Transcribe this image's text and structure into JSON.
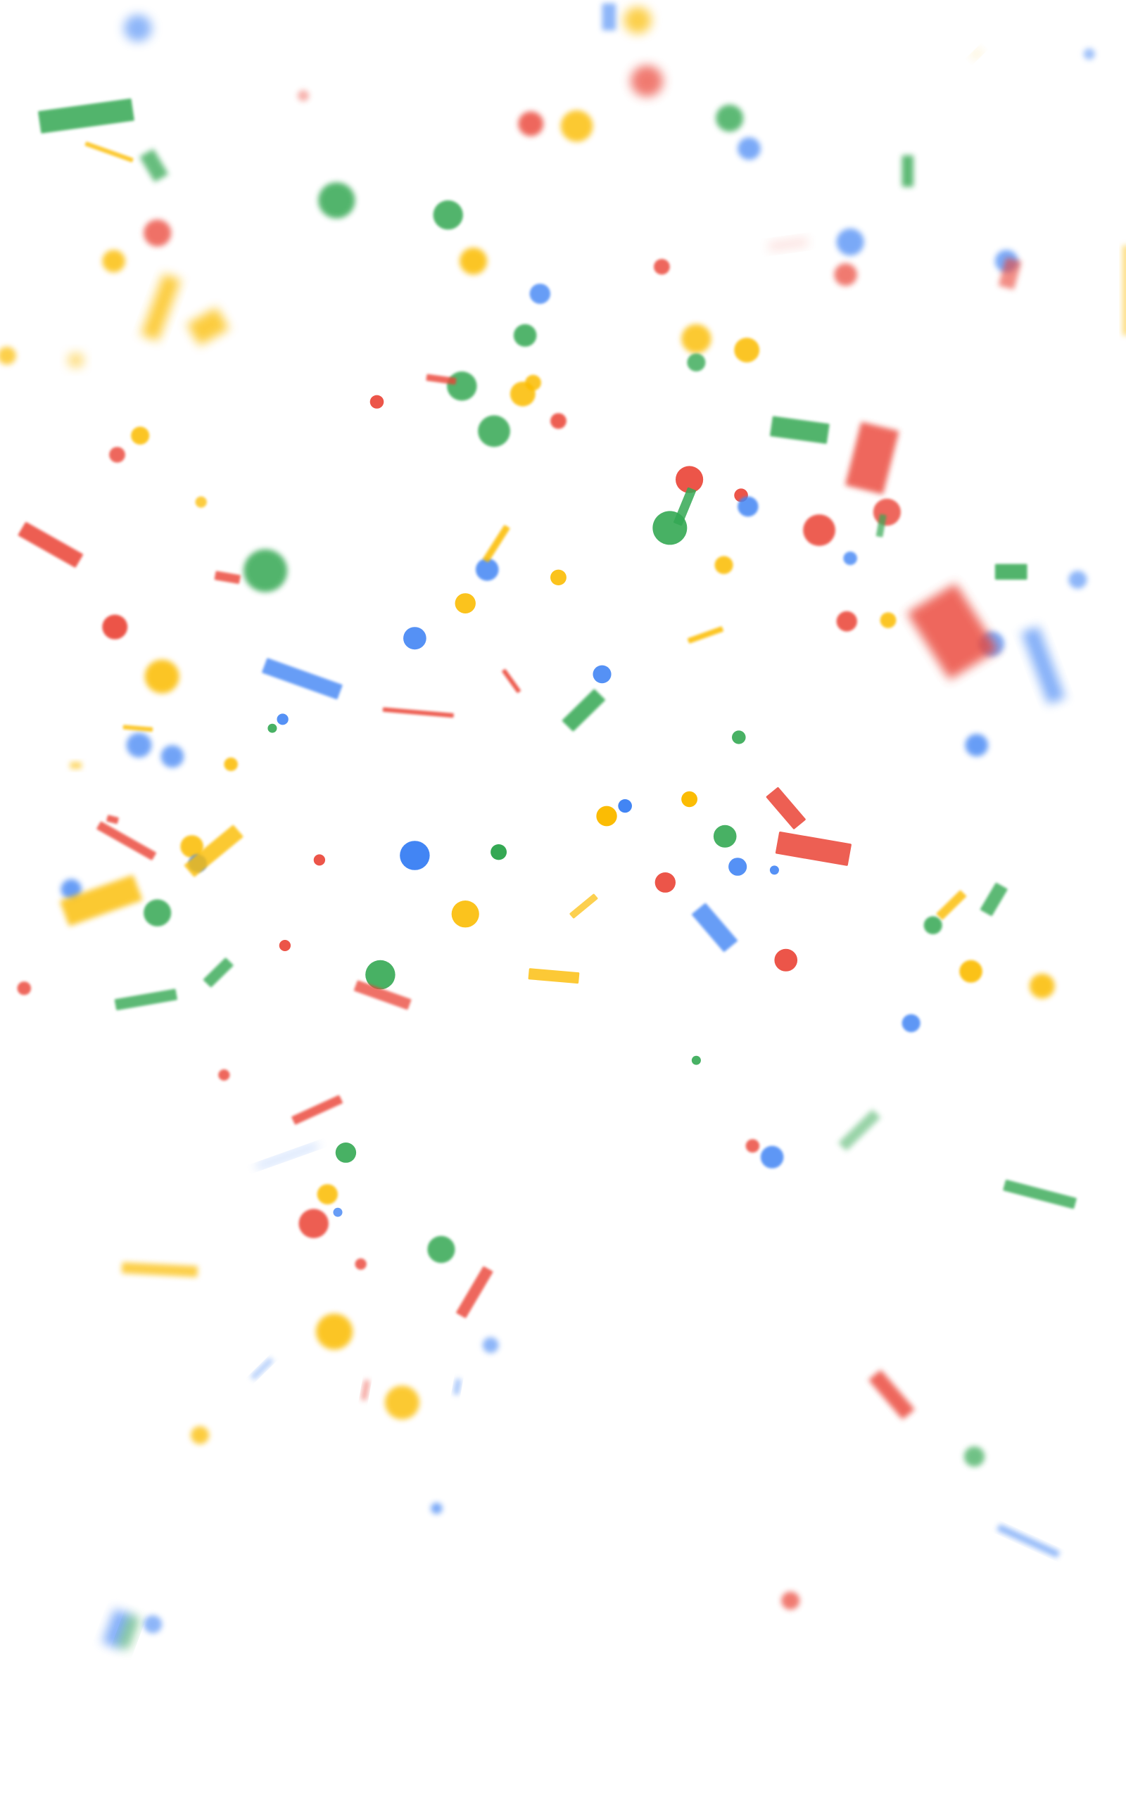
{
  "scene": {
    "background": "#ffffff",
    "effect": "confetti-burst",
    "palette": {
      "blue": "#4285f4",
      "red": "#ea4335",
      "yellow": "#fbbc04",
      "green": "#34a853"
    }
  }
}
